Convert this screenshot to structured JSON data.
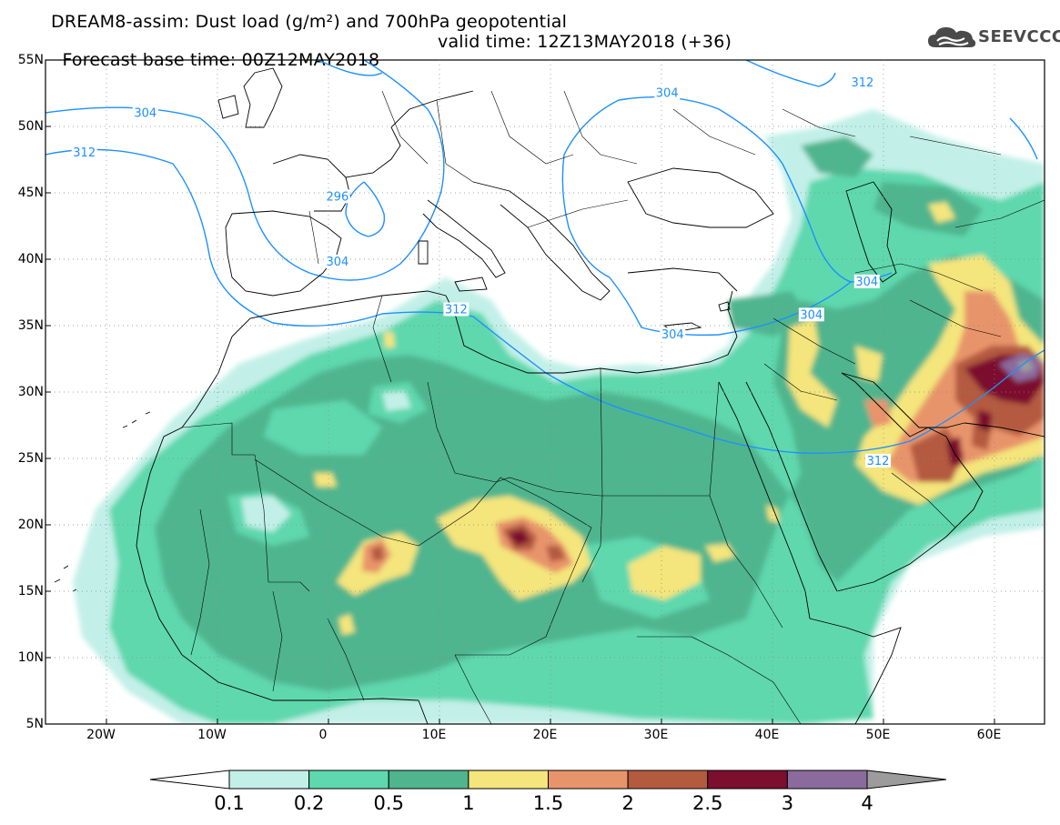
{
  "title_line1": "DREAM8-assim: Dust load (g/m²) and 700hPa geopotential",
  "title_line2": "Forecast base time: 00Z12MAY2018",
  "valid_time": "valid time: 12Z13MAY2018 (+36)",
  "logo_text": "SEEVCCC",
  "logo_icon": "cloud-icon",
  "map": {
    "lon_range": [
      -25,
      65
    ],
    "lat_range": [
      5,
      55
    ],
    "lat_labels": [
      "55N",
      "50N",
      "45N",
      "40N",
      "35N",
      "30N",
      "25N",
      "20N",
      "15N",
      "10N",
      "5N"
    ],
    "lon_labels": [
      "20W",
      "10W",
      "0",
      "10E",
      "20E",
      "30E",
      "40E",
      "50E",
      "60E"
    ],
    "contour_color": "#1e90ff",
    "contour_labels": [
      {
        "value": "304",
        "lon": -16,
        "lat": 51
      },
      {
        "value": "312",
        "lon": -21.5,
        "lat": 48
      },
      {
        "value": "296",
        "lon": 1.3,
        "lat": 44.7
      },
      {
        "value": "304",
        "lon": 1.3,
        "lat": 39.8
      },
      {
        "value": "312",
        "lon": 12,
        "lat": 36.2
      },
      {
        "value": "304",
        "lon": 31,
        "lat": 52.5
      },
      {
        "value": "312",
        "lon": 48.6,
        "lat": 53.3
      },
      {
        "value": "304",
        "lon": 31.5,
        "lat": 34.3
      },
      {
        "value": "304",
        "lon": 44,
        "lat": 35.8
      },
      {
        "value": "304",
        "lon": 49,
        "lat": 38.3
      },
      {
        "value": "312",
        "lon": 50,
        "lat": 24.8
      }
    ]
  },
  "colorbar": {
    "labels": [
      "0.1",
      "0.2",
      "0.5",
      "1",
      "1.5",
      "2",
      "2.5",
      "3",
      "4"
    ],
    "colors": [
      "#c2f0e8",
      "#5ed8ae",
      "#4fb58e",
      "#f4e57c",
      "#e8946a",
      "#b45a3f",
      "#7c0e2e",
      "#8b6b9e",
      "#9c9c9c"
    ]
  }
}
